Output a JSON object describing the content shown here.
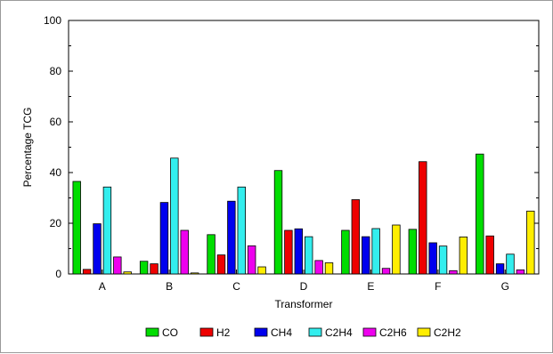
{
  "chart_data": {
    "type": "bar",
    "title": "",
    "xlabel": "Transformer",
    "ylabel": "Percentage TCG",
    "ylim": [
      0,
      100
    ],
    "yticks": [
      0,
      20,
      40,
      60,
      80,
      100
    ],
    "categories": [
      "A",
      "B",
      "C",
      "D",
      "E",
      "F",
      "G"
    ],
    "series": [
      {
        "name": "CO",
        "color": "#00dd00",
        "values": [
          36.5,
          5,
          15.5,
          40.8,
          17.2,
          17.6,
          47.3
        ]
      },
      {
        "name": "H2",
        "color": "#ee0000",
        "values": [
          1.8,
          4,
          7.5,
          17.2,
          29.3,
          44.3,
          15
        ]
      },
      {
        "name": "CH4",
        "color": "#0000ee",
        "values": [
          19.8,
          28.2,
          28.7,
          17.8,
          14.7,
          12.3,
          4
        ]
      },
      {
        "name": "C2H4",
        "color": "#33eeee",
        "values": [
          34.3,
          45.7,
          34.3,
          14.7,
          17.9,
          11,
          7.8
        ]
      },
      {
        "name": "C2H6",
        "color": "#ee00ee",
        "values": [
          6.7,
          17.2,
          11.1,
          5.3,
          2.2,
          1.3,
          1.6
        ]
      },
      {
        "name": "C2H2",
        "color": "#ffee00",
        "values": [
          0.8,
          0.4,
          2.8,
          4.4,
          19.3,
          14.6,
          24.8
        ]
      }
    ],
    "legend_position": "bottom",
    "grid": false
  }
}
